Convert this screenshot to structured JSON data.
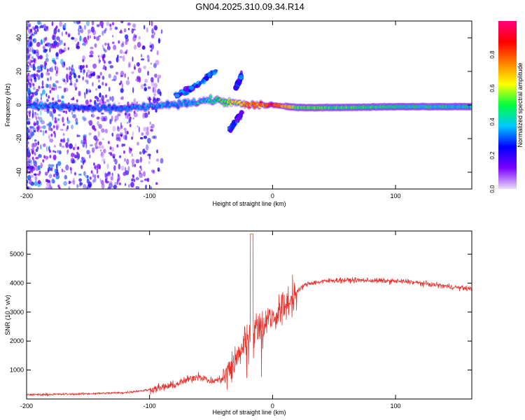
{
  "page_title": "GN04.2025.310.09.34.R14",
  "chart_data": [
    {
      "type": "heatmap",
      "xlabel": "Height of straight line (km)",
      "ylabel": "Frequency (Hz)",
      "xlim": [
        -200,
        162
      ],
      "ylim": [
        -50,
        50
      ],
      "xticks": [
        -200,
        -100,
        0,
        100
      ],
      "yticks": [
        40,
        20,
        0,
        -20,
        -40
      ],
      "grid": false,
      "colorbar": {
        "label": "Normalized spectral amplitude",
        "range": [
          0,
          1
        ],
        "ticks": [
          "0.0",
          "0.2",
          "0.4",
          "0.6",
          "0.8"
        ],
        "colors": [
          "#e9ddf8",
          "#7b00ff",
          "#0000ff",
          "#00c8ff",
          "#00ff40",
          "#ffff00",
          "#ff8000",
          "#ff0000",
          "#ff0080"
        ]
      },
      "ridge": {
        "description": "dominant frequency band vs height",
        "x": [
          -200,
          -150,
          -120,
          -100,
          -80,
          -60,
          -45,
          -30,
          -20,
          -10,
          0,
          20,
          50,
          100,
          162
        ],
        "freq": [
          0,
          -2,
          -2,
          -1,
          0,
          2,
          3,
          1,
          0,
          0,
          0,
          -1.5,
          -1.5,
          -1,
          -1
        ],
        "amplitude": [
          0.35,
          0.3,
          0.32,
          0.35,
          0.35,
          0.4,
          0.45,
          0.6,
          0.7,
          0.75,
          0.85,
          0.5,
          0.5,
          0.45,
          0.4
        ]
      },
      "branches": [
        {
          "x": [
            -80,
            -60,
            -45
          ],
          "freq": [
            5,
            12,
            22
          ]
        },
        {
          "x": [
            -35,
            -25
          ],
          "freq": [
            -15,
            -5
          ]
        },
        {
          "x": [
            -30,
            -25
          ],
          "freq": [
            10,
            18
          ]
        }
      ]
    },
    {
      "type": "line",
      "xlabel": "Height of straight line (km)",
      "ylabel": "SNR (10 * v/v)",
      "xlim": [
        -200,
        162
      ],
      "ylim": [
        0,
        5800
      ],
      "xticks": [
        -200,
        -100,
        0,
        100
      ],
      "yticks": [
        1000,
        2000,
        3000,
        4000,
        5000
      ],
      "grid": false,
      "series": [
        {
          "name": "SNR",
          "color": "#e8312a",
          "x": [
            -200,
            -160,
            -120,
            -100,
            -80,
            -70,
            -60,
            -50,
            -40,
            -30,
            -25,
            -20,
            -18,
            -15,
            -10,
            0,
            10,
            20,
            25,
            30,
            40,
            50,
            70,
            90,
            110,
            130,
            150,
            162
          ],
          "y": [
            150,
            170,
            220,
            320,
            480,
            650,
            800,
            600,
            700,
            1300,
            1800,
            2300,
            2500,
            2400,
            2600,
            2800,
            3200,
            3700,
            3900,
            4000,
            4050,
            4100,
            4100,
            4080,
            4050,
            3950,
            3850,
            3800
          ]
        }
      ]
    }
  ]
}
